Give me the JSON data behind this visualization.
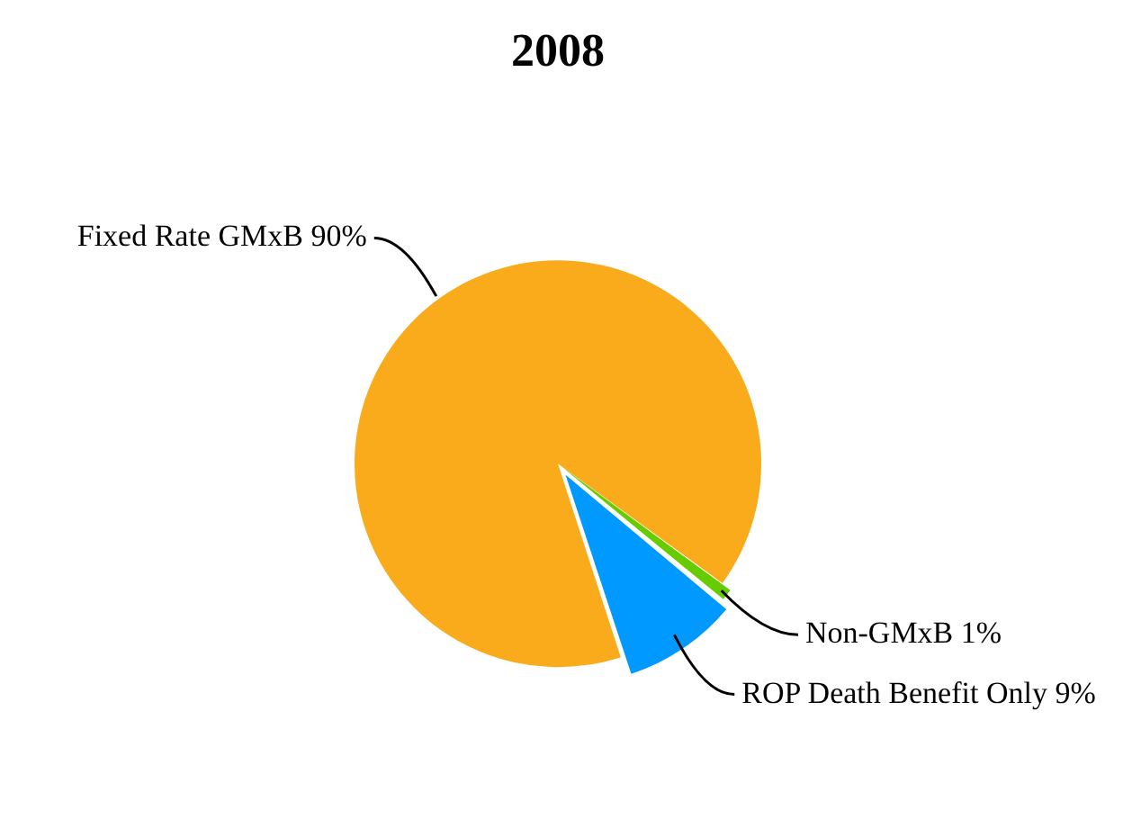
{
  "chart_data": {
    "type": "pie",
    "title": "2008",
    "categories": [
      "Fixed Rate GMxB",
      "Non-GMxB",
      "ROP Death Benefit Only"
    ],
    "values": [
      90,
      1,
      9
    ],
    "value_labels": [
      "90%",
      "1%",
      "9%"
    ],
    "colors": [
      "#f9ab1b",
      "#66cc00",
      "#0099ff"
    ],
    "legend": false
  }
}
